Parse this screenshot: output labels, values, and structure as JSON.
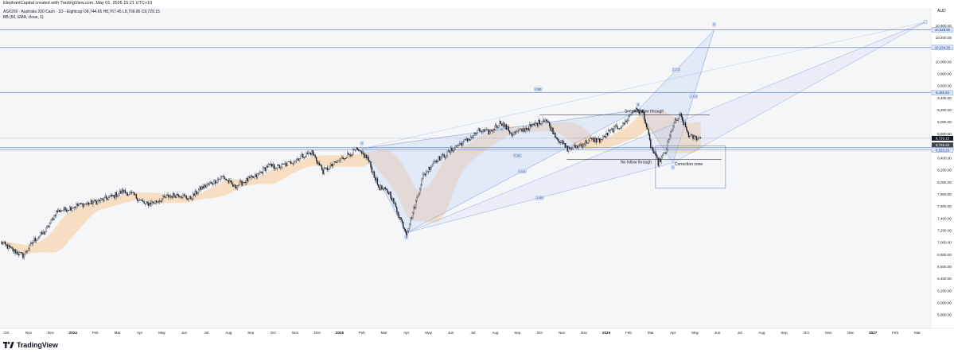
{
  "header": {
    "created_by": "ElephantCapital created with TradingView.com, May 01, 2026 15:21 UTC+10"
  },
  "footer": {
    "logo_text": "TradingView"
  },
  "colors": {
    "background": "#f5f6f8",
    "candle": "#131722",
    "band_fill": "#f7c993",
    "pattern_fill": "#c9d6f5",
    "pattern_line": "#7b9ad8",
    "level_line": "#4a72c4",
    "label_fill": "#d9e3f7"
  },
  "chart_data": {
    "type": "candlestick",
    "symbol_line": "ASX200 · Australia 200 Cash · 1D · Eightcap  O8,744.65  H8,767.45  L8,709.95  C8,729.15",
    "indicator_line": "BB (50, EMA, close, 1)",
    "y_unit": "AUD",
    "ylim": [
      5640,
      10760
    ],
    "y_ticks": [
      "10,600.00",
      "10,400.00",
      "10,000.00",
      "9,800.00",
      "9,600.00",
      "9,400.00",
      "9,200.00",
      "9,000.00",
      "8,800.00",
      "8,600.00",
      "8,400.00",
      "8,200.00",
      "8,000.00",
      "7,800.00",
      "7,600.00",
      "7,400.00",
      "7,200.00",
      "7,000.00",
      "6,800.00",
      "6,600.00",
      "6,400.00",
      "6,200.00",
      "6,000.00",
      "5,800.00"
    ],
    "x_ticks": [
      "Oct",
      "Nov",
      "Dec",
      "2024",
      "Feb",
      "Mar",
      "Apr",
      "May",
      "Jun",
      "Jul",
      "Aug",
      "Sep",
      "Oct",
      "Nov",
      "Dec",
      "2025",
      "Feb",
      "Mar",
      "Apr",
      "May",
      "Jun",
      "Jul",
      "Aug",
      "Sep",
      "Oct",
      "Nov",
      "Dec",
      "2026",
      "Feb",
      "Mar",
      "Apr",
      "May",
      "Jun",
      "Jul",
      "Aug",
      "Sep",
      "Oct",
      "Nov",
      "Dec",
      "2027",
      "Feb",
      "Mar"
    ],
    "price_path": [
      [
        "Oct",
        7000
      ],
      [
        "Oct",
        6880
      ],
      [
        "Nov",
        6780
      ],
      [
        "Nov",
        7040
      ],
      [
        "Dec",
        7180
      ],
      [
        "Dec",
        7510
      ],
      [
        "2024",
        7560
      ],
      [
        "2024",
        7620
      ],
      [
        "Feb",
        7650
      ],
      [
        "Feb",
        7700
      ],
      [
        "Mar",
        7760
      ],
      [
        "Mar",
        7850
      ],
      [
        "Apr",
        7780
      ],
      [
        "Apr",
        7630
      ],
      [
        "May",
        7680
      ],
      [
        "May",
        7760
      ],
      [
        "Jun",
        7800
      ],
      [
        "Jun",
        7720
      ],
      [
        "Jul",
        7900
      ],
      [
        "Jul",
        7990
      ],
      [
        "Aug",
        8090
      ],
      [
        "Aug",
        7920
      ],
      [
        "Sep",
        8020
      ],
      [
        "Sep",
        8100
      ],
      [
        "Oct",
        8270
      ],
      [
        "Oct",
        8250
      ],
      [
        "Nov",
        8320
      ],
      [
        "Nov",
        8420
      ],
      [
        "Dec",
        8500
      ],
      [
        "Dec",
        8180
      ],
      [
        "2025",
        8300
      ],
      [
        "2025",
        8430
      ],
      [
        "Feb",
        8530
      ],
      [
        "Feb",
        8400
      ],
      [
        "Mar",
        7920
      ],
      [
        "Mar",
        7820
      ],
      [
        "Apr",
        7450
      ],
      [
        "Apr",
        7160
      ],
      [
        "Apr",
        7550
      ],
      [
        "May",
        8100
      ],
      [
        "May",
        8350
      ],
      [
        "Jun",
        8450
      ],
      [
        "Jun",
        8600
      ],
      [
        "Jul",
        8700
      ],
      [
        "Jul",
        8850
      ],
      [
        "Aug",
        8830
      ],
      [
        "Aug",
        9000
      ],
      [
        "Sep",
        8800
      ],
      [
        "Sep",
        8870
      ],
      [
        "Oct",
        8950
      ],
      [
        "Oct",
        9050
      ],
      [
        "Nov",
        8750
      ],
      [
        "Nov",
        8550
      ],
      [
        "Dec",
        8600
      ],
      [
        "Dec",
        8700
      ],
      [
        "2026",
        8700
      ],
      [
        "2026",
        8870
      ],
      [
        "Feb",
        8950
      ],
      [
        "Feb",
        9200
      ],
      [
        "Mar",
        9150
      ],
      [
        "Mar",
        8600
      ],
      [
        "Mar",
        8320
      ],
      [
        "Apr",
        8500
      ],
      [
        "Apr",
        8950
      ],
      [
        "Apr",
        9100
      ],
      [
        "May",
        8750
      ],
      [
        "May",
        8729
      ]
    ],
    "horizontal_levels": [
      {
        "label": "10,529.86",
        "value": 10529.86
      },
      {
        "label": "10,234.20",
        "value": 10234.2
      },
      {
        "label": "9,485.94",
        "value": 9485.94
      },
      {
        "label": "8,572.56",
        "value": 8572.56
      },
      {
        "label": "8,533.29",
        "value": 8533.29
      }
    ],
    "price_badges": [
      {
        "label": "8,729.15",
        "value": 8729.15,
        "style": "current"
      },
      {
        "label": "8,726.33",
        "value": 8620,
        "style": "secondary"
      }
    ],
    "annotations": [
      {
        "text": "Sneaky follow through",
        "x": "Feb",
        "y": 9150
      },
      {
        "text": "No follow through",
        "x": "Mar",
        "y": 8380
      },
      {
        "text": "Correction zone",
        "x": "Apr",
        "y": 8280
      }
    ],
    "pattern_points": [
      "X",
      "A",
      "B",
      "C",
      "D"
    ],
    "ratio_labels": [
      "0.786",
      "1.618",
      "0.886",
      "1.272",
      "0.618",
      "1.414",
      "0.382"
    ]
  }
}
